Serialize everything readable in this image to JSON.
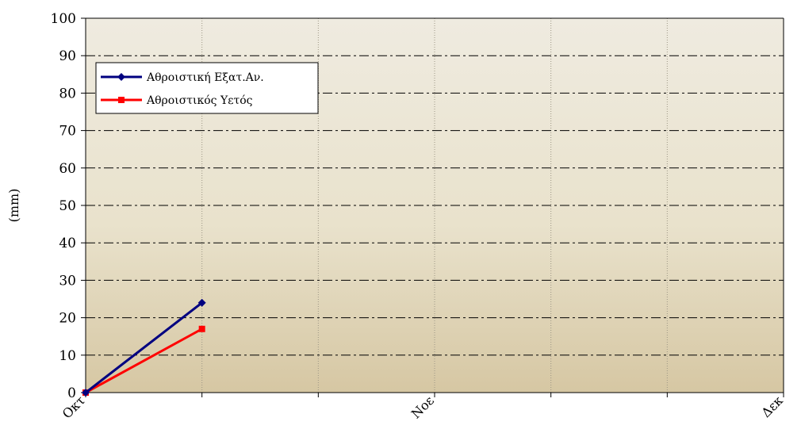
{
  "chart_data": {
    "type": "line",
    "title": "",
    "xlabel": "",
    "ylabel": "(mm)",
    "ylim": [
      0,
      100
    ],
    "yticks": [
      0,
      10,
      20,
      30,
      40,
      50,
      60,
      70,
      80,
      90,
      100
    ],
    "x_slots": 7,
    "categories": [
      {
        "label": "Οκτ",
        "slot": 0
      },
      {
        "label": "Νοε",
        "slot": 3
      },
      {
        "label": "Δεκ",
        "slot": 6
      }
    ],
    "series": [
      {
        "name": "Αθροιστική Εξατ.Αν.",
        "color": "#000080",
        "marker": "diamond",
        "x": [
          0,
          1
        ],
        "values": [
          0,
          24
        ]
      },
      {
        "name": "Αθροιστικός Υετός",
        "color": "#ff0000",
        "marker": "square",
        "x": [
          0,
          1
        ],
        "values": [
          0,
          17
        ]
      }
    ],
    "grid": {
      "horizontal": "dash-dot",
      "vertical": "dotted"
    },
    "legend_position": "top-left",
    "colors": {
      "plot_top": "#efebe0",
      "plot_bottom": "#d6c7a3",
      "gridline": "#000000"
    }
  }
}
